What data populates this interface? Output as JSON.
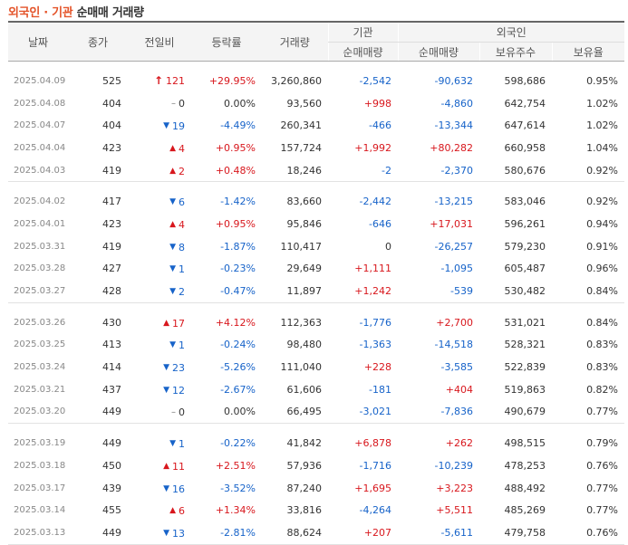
{
  "title": {
    "highlight": "외국인 · 기관",
    "rest": " 순매매 거래량"
  },
  "headers": {
    "date": "날짜",
    "close": "종가",
    "change": "전일비",
    "rate": "등락률",
    "volume": "거래량",
    "institution": "기관",
    "inst_net": "순매매량",
    "foreign": "외국인",
    "foreign_net": "순매매량",
    "holdings": "보유주수",
    "ratio": "보유율"
  },
  "groups": [
    [
      {
        "date": "2025.04.09",
        "close": "525",
        "dir": "limit",
        "change": "121",
        "rate": "+29.95%",
        "volume": "3,260,860",
        "inst": "-2,542",
        "foreign": "-90,632",
        "holdings": "598,686",
        "ratio": "0.95%"
      },
      {
        "date": "2025.04.08",
        "close": "404",
        "dir": "flat",
        "change": "0",
        "rate": "0.00%",
        "volume": "93,560",
        "inst": "+998",
        "foreign": "-4,860",
        "holdings": "642,754",
        "ratio": "1.02%"
      },
      {
        "date": "2025.04.07",
        "close": "404",
        "dir": "down",
        "change": "19",
        "rate": "-4.49%",
        "volume": "260,341",
        "inst": "-466",
        "foreign": "-13,344",
        "holdings": "647,614",
        "ratio": "1.02%"
      },
      {
        "date": "2025.04.04",
        "close": "423",
        "dir": "up",
        "change": "4",
        "rate": "+0.95%",
        "volume": "157,724",
        "inst": "+1,992",
        "foreign": "+80,282",
        "holdings": "660,958",
        "ratio": "1.04%"
      },
      {
        "date": "2025.04.03",
        "close": "419",
        "dir": "up",
        "change": "2",
        "rate": "+0.48%",
        "volume": "18,246",
        "inst": "-2",
        "foreign": "-2,370",
        "holdings": "580,676",
        "ratio": "0.92%"
      }
    ],
    [
      {
        "date": "2025.04.02",
        "close": "417",
        "dir": "down",
        "change": "6",
        "rate": "-1.42%",
        "volume": "83,660",
        "inst": "-2,442",
        "foreign": "-13,215",
        "holdings": "583,046",
        "ratio": "0.92%"
      },
      {
        "date": "2025.04.01",
        "close": "423",
        "dir": "up",
        "change": "4",
        "rate": "+0.95%",
        "volume": "95,846",
        "inst": "-646",
        "foreign": "+17,031",
        "holdings": "596,261",
        "ratio": "0.94%"
      },
      {
        "date": "2025.03.31",
        "close": "419",
        "dir": "down",
        "change": "8",
        "rate": "-1.87%",
        "volume": "110,417",
        "inst": "0",
        "foreign": "-26,257",
        "holdings": "579,230",
        "ratio": "0.91%"
      },
      {
        "date": "2025.03.28",
        "close": "427",
        "dir": "down",
        "change": "1",
        "rate": "-0.23%",
        "volume": "29,649",
        "inst": "+1,111",
        "foreign": "-1,095",
        "holdings": "605,487",
        "ratio": "0.96%"
      },
      {
        "date": "2025.03.27",
        "close": "428",
        "dir": "down",
        "change": "2",
        "rate": "-0.47%",
        "volume": "11,897",
        "inst": "+1,242",
        "foreign": "-539",
        "holdings": "530,482",
        "ratio": "0.84%"
      }
    ],
    [
      {
        "date": "2025.03.26",
        "close": "430",
        "dir": "up",
        "change": "17",
        "rate": "+4.12%",
        "volume": "112,363",
        "inst": "-1,776",
        "foreign": "+2,700",
        "holdings": "531,021",
        "ratio": "0.84%"
      },
      {
        "date": "2025.03.25",
        "close": "413",
        "dir": "down",
        "change": "1",
        "rate": "-0.24%",
        "volume": "98,480",
        "inst": "-1,363",
        "foreign": "-14,518",
        "holdings": "528,321",
        "ratio": "0.83%"
      },
      {
        "date": "2025.03.24",
        "close": "414",
        "dir": "down",
        "change": "23",
        "rate": "-5.26%",
        "volume": "111,040",
        "inst": "+228",
        "foreign": "-3,585",
        "holdings": "522,839",
        "ratio": "0.83%"
      },
      {
        "date": "2025.03.21",
        "close": "437",
        "dir": "down",
        "change": "12",
        "rate": "-2.67%",
        "volume": "61,606",
        "inst": "-181",
        "foreign": "+404",
        "holdings": "519,863",
        "ratio": "0.82%"
      },
      {
        "date": "2025.03.20",
        "close": "449",
        "dir": "flat",
        "change": "0",
        "rate": "0.00%",
        "volume": "66,495",
        "inst": "-3,021",
        "foreign": "-7,836",
        "holdings": "490,679",
        "ratio": "0.77%"
      }
    ],
    [
      {
        "date": "2025.03.19",
        "close": "449",
        "dir": "down",
        "change": "1",
        "rate": "-0.22%",
        "volume": "41,842",
        "inst": "+6,878",
        "foreign": "+262",
        "holdings": "498,515",
        "ratio": "0.79%"
      },
      {
        "date": "2025.03.18",
        "close": "450",
        "dir": "up",
        "change": "11",
        "rate": "+2.51%",
        "volume": "57,936",
        "inst": "-1,716",
        "foreign": "-10,239",
        "holdings": "478,253",
        "ratio": "0.76%"
      },
      {
        "date": "2025.03.17",
        "close": "439",
        "dir": "down",
        "change": "16",
        "rate": "-3.52%",
        "volume": "87,240",
        "inst": "+1,695",
        "foreign": "+3,223",
        "holdings": "488,492",
        "ratio": "0.77%"
      },
      {
        "date": "2025.03.14",
        "close": "455",
        "dir": "up",
        "change": "6",
        "rate": "+1.34%",
        "volume": "33,816",
        "inst": "-4,264",
        "foreign": "+5,511",
        "holdings": "485,269",
        "ratio": "0.77%"
      },
      {
        "date": "2025.03.13",
        "close": "449",
        "dir": "down",
        "change": "13",
        "rate": "-2.81%",
        "volume": "88,624",
        "inst": "+207",
        "foreign": "-5,611",
        "holdings": "479,758",
        "ratio": "0.76%"
      }
    ]
  ],
  "icons": {
    "limit_up": "limit-up-arrow-icon",
    "up": "up-triangle-icon",
    "down": "down-triangle-icon",
    "flat": "dash-icon"
  },
  "colors": {
    "up": "#d8171d",
    "down": "#1763c9",
    "title_accent": "#e4542a"
  }
}
